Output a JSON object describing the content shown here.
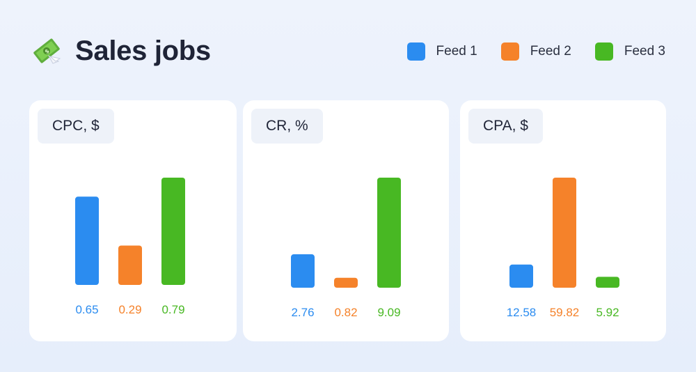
{
  "header": {
    "title": "Sales jobs",
    "icon": "money-with-wings-icon"
  },
  "legend": [
    {
      "label": "Feed 1",
      "color": "#2b8cf0"
    },
    {
      "label": "Feed 2",
      "color": "#f5822a"
    },
    {
      "label": "Feed 3",
      "color": "#48b823"
    }
  ],
  "chart_data": [
    {
      "type": "bar",
      "title": "CPC, $",
      "categories": [
        "Feed 1",
        "Feed 2",
        "Feed 3"
      ],
      "values": [
        0.65,
        0.29,
        0.79
      ],
      "labels": [
        "0.65",
        "0.29",
        "0.79"
      ],
      "colors": [
        "#2b8cf0",
        "#f5822a",
        "#48b823"
      ]
    },
    {
      "type": "bar",
      "title": "CR, %",
      "categories": [
        "Feed 1",
        "Feed 2",
        "Feed 3"
      ],
      "values": [
        2.76,
        0.82,
        9.09
      ],
      "labels": [
        "2.76",
        "0.82",
        "9.09"
      ],
      "colors": [
        "#2b8cf0",
        "#f5822a",
        "#48b823"
      ]
    },
    {
      "type": "bar",
      "title": "CPA, $",
      "categories": [
        "Feed 1",
        "Feed 2",
        "Feed 3"
      ],
      "values": [
        12.58,
        59.82,
        5.92
      ],
      "labels": [
        "12.58",
        "59.82",
        "5.92"
      ],
      "colors": [
        "#2b8cf0",
        "#f5822a",
        "#48b823"
      ]
    }
  ]
}
